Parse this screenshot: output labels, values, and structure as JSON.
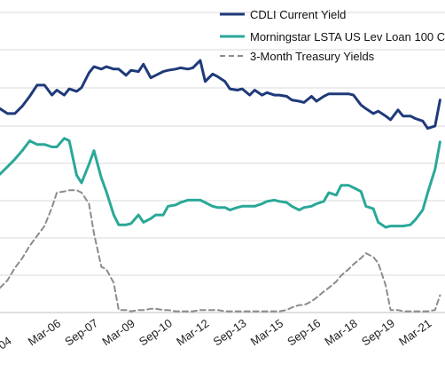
{
  "chart_data": {
    "type": "line",
    "title": "",
    "xlabel": "",
    "ylabel": "",
    "x_tick_labels": [
      "Mar-06",
      "Sep-07",
      "Mar-09",
      "Sep-10",
      "Mar-12",
      "Sep-13",
      "Mar-15",
      "Sep-16",
      "Mar-18",
      "Sep-19",
      "Mar-21"
    ],
    "partial_edge_tick_label": "04",
    "grid": "horizontal",
    "legend_position": "top-right",
    "series": [
      {
        "name": "CDLI Current Yield",
        "color": "#1f3a7a",
        "dash": "solid",
        "x": [
          2004.9,
          2005.2,
          2005.5,
          2005.8,
          2006.1,
          2006.4,
          2006.7,
          2007.0,
          2007.3,
          2007.6,
          2007.9,
          2008.2,
          2008.5,
          2008.8,
          2009.1,
          2009.4,
          2009.7,
          2010.0,
          2010.3,
          2010.6,
          2010.9,
          2011.2,
          2011.5,
          2011.8,
          2012.1,
          2012.4,
          2012.7,
          2013.0,
          2013.3,
          2013.6,
          2013.9,
          2014.2,
          2014.5,
          2014.8,
          2015.1,
          2015.4,
          2015.7,
          2016.0,
          2016.3,
          2016.6,
          2016.9,
          2017.2,
          2017.5,
          2017.8,
          2018.1,
          2018.4,
          2018.7,
          2019.0,
          2019.3,
          2019.6,
          2019.9,
          2020.2,
          2020.5,
          2020.8,
          2021.1,
          2021.4,
          2021.7,
          2022.0
        ],
        "y": [
          8.9,
          9.2,
          10.2,
          9.6,
          9.9,
          10.1,
          10.9,
          11.3,
          11.1,
          10.9,
          11.2,
          10.9,
          10.5,
          11.0,
          11.2,
          10.6,
          10.9,
          11.0,
          11.1,
          11.3,
          10.6,
          10.9,
          10.6,
          10.3,
          10.2,
          10.3,
          10.1,
          10.1,
          9.9,
          9.8,
          9.8,
          9.5,
          9.7,
          9.3,
          9.6,
          9.8,
          9.9,
          10.0,
          10.0,
          10.0,
          9.8,
          9.4,
          9.0,
          8.8,
          9.0,
          8.6,
          8.7,
          8.3,
          8.4,
          8.5,
          8.2,
          7.7,
          7.6,
          9.1,
          8.4,
          7.9,
          8.9,
          9.4
        ],
        "x_dense": [
          2004.0,
          2004.3,
          2004.6,
          2004.9,
          2005.2,
          2005.5,
          2005.8,
          2006.1,
          2006.3,
          2006.6,
          2006.8,
          2007.1,
          2007.3,
          2007.6,
          2007.8,
          2008.1,
          2008.3,
          2008.6,
          2008.8,
          2009.1,
          2009.3,
          2009.6,
          2009.8,
          2010.1,
          2010.3,
          2010.6,
          2010.8,
          2011.1,
          2011.3,
          2011.6,
          2011.8,
          2012.1,
          2012.3,
          2012.6,
          2012.8,
          2013.1,
          2013.3,
          2013.6,
          2013.8,
          2014.1,
          2014.3,
          2014.6,
          2014.8,
          2015.1,
          2015.3,
          2015.6,
          2015.8,
          2016.1,
          2016.3,
          2016.6,
          2016.8,
          2017.1,
          2017.3,
          2017.6,
          2017.8,
          2018.1,
          2018.3,
          2018.6,
          2018.8,
          2019.1,
          2019.3,
          2019.6,
          2019.8,
          2020.1,
          2020.3,
          2020.6,
          2020.8,
          2021.1,
          2021.3,
          2021.6,
          2021.8
        ],
        "y_dense": [
          8.25,
          8.05,
          8.05,
          8.35,
          8.75,
          9.2,
          9.2,
          8.8,
          9.0,
          8.8,
          9.05,
          8.95,
          9.1,
          9.7,
          9.95,
          9.85,
          9.95,
          9.85,
          9.85,
          9.6,
          9.8,
          9.75,
          10.05,
          9.5,
          9.6,
          9.75,
          9.8,
          9.85,
          9.9,
          9.85,
          9.9,
          10.2,
          9.35,
          9.65,
          9.55,
          9.35,
          9.05,
          9.0,
          9.05,
          8.8,
          9.0,
          8.8,
          8.9,
          8.8,
          8.8,
          8.75,
          8.6,
          8.55,
          8.5,
          8.75,
          8.55,
          8.75,
          8.85,
          8.85,
          8.85,
          8.85,
          8.8,
          8.4,
          8.25,
          8.05,
          8.15,
          7.95,
          7.8,
          8.2,
          7.95,
          7.95,
          7.85,
          7.75,
          7.45,
          7.55,
          8.6
        ]
      },
      {
        "name": "Morningstar LSTA US Lev Loan 100 C",
        "color": "#2aa898",
        "dash": "solid",
        "x": [
          2004.0,
          2004.3,
          2004.6,
          2004.9,
          2005.2,
          2005.5,
          2005.8,
          2006.1,
          2006.3,
          2006.6,
          2006.8,
          2007.1,
          2007.3,
          2007.6,
          2007.8,
          2008.1,
          2008.3,
          2008.6,
          2008.8,
          2009.1,
          2009.3,
          2009.6,
          2009.8,
          2010.1,
          2010.3,
          2010.6,
          2010.8,
          2011.1,
          2011.3,
          2011.6,
          2011.8,
          2012.1,
          2012.3,
          2012.6,
          2012.8,
          2013.1,
          2013.3,
          2013.6,
          2013.8,
          2014.1,
          2014.3,
          2014.6,
          2014.8,
          2015.1,
          2015.3,
          2015.6,
          2015.8,
          2016.1,
          2016.3,
          2016.6,
          2016.8,
          2017.1,
          2017.3,
          2017.6,
          2017.8,
          2018.1,
          2018.3,
          2018.6,
          2018.8,
          2019.1,
          2019.3,
          2019.6,
          2019.8,
          2020.1,
          2020.3,
          2020.6,
          2020.8,
          2021.1,
          2021.3,
          2021.6,
          2021.8
        ],
        "y": [
          5.6,
          5.9,
          6.2,
          6.55,
          6.95,
          6.8,
          6.8,
          6.7,
          6.7,
          7.05,
          6.95,
          5.55,
          5.25,
          6.0,
          6.55,
          5.45,
          4.9,
          3.95,
          3.55,
          3.55,
          3.6,
          3.95,
          3.65,
          3.8,
          3.95,
          3.95,
          4.3,
          4.35,
          4.45,
          4.55,
          4.55,
          4.55,
          4.45,
          4.3,
          4.25,
          4.25,
          4.15,
          4.25,
          4.3,
          4.3,
          4.3,
          4.4,
          4.5,
          4.55,
          4.5,
          4.45,
          4.3,
          4.15,
          4.25,
          4.3,
          4.4,
          4.5,
          4.85,
          4.75,
          5.15,
          5.15,
          5.05,
          4.9,
          4.3,
          4.2,
          3.65,
          3.45,
          3.5,
          3.5,
          3.5,
          3.55,
          3.75,
          4.15,
          4.85,
          5.8,
          6.9
        ]
      },
      {
        "name": "3-Month Treasury Yields",
        "color": "#8c8c8c",
        "dash": "dashed",
        "x": [
          2004.0,
          2004.3,
          2004.6,
          2004.9,
          2005.2,
          2005.5,
          2005.8,
          2006.1,
          2006.3,
          2006.6,
          2006.8,
          2007.1,
          2007.3,
          2007.6,
          2007.8,
          2008.1,
          2008.3,
          2008.6,
          2008.8,
          2009.1,
          2009.3,
          2009.6,
          2009.8,
          2010.1,
          2010.3,
          2010.6,
          2010.8,
          2011.1,
          2011.3,
          2011.6,
          2011.8,
          2012.1,
          2012.3,
          2012.6,
          2012.8,
          2013.1,
          2013.3,
          2013.6,
          2013.8,
          2014.1,
          2014.3,
          2014.6,
          2014.8,
          2015.1,
          2015.3,
          2015.6,
          2015.8,
          2016.1,
          2016.3,
          2016.6,
          2016.8,
          2017.1,
          2017.3,
          2017.6,
          2017.8,
          2018.1,
          2018.3,
          2018.6,
          2018.8,
          2019.1,
          2019.3,
          2019.6,
          2019.8,
          2020.1,
          2020.3,
          2020.6,
          2020.8,
          2021.1,
          2021.3,
          2021.6,
          2021.8
        ],
        "y": [
          1.0,
          1.3,
          1.8,
          2.2,
          2.7,
          3.1,
          3.5,
          4.25,
          4.85,
          4.9,
          4.95,
          4.95,
          4.85,
          4.4,
          3.2,
          1.85,
          1.75,
          1.2,
          0.1,
          0.1,
          0.05,
          0.1,
          0.1,
          0.15,
          0.15,
          0.1,
          0.1,
          0.05,
          0.05,
          0.05,
          0.05,
          0.1,
          0.1,
          0.1,
          0.1,
          0.05,
          0.05,
          0.05,
          0.05,
          0.05,
          0.05,
          0.05,
          0.05,
          0.05,
          0.05,
          0.1,
          0.2,
          0.3,
          0.3,
          0.45,
          0.6,
          0.85,
          1.0,
          1.25,
          1.5,
          1.75,
          1.95,
          2.2,
          2.4,
          2.25,
          2.0,
          1.1,
          0.1,
          0.1,
          0.05,
          0.05,
          0.05,
          0.05,
          0.05,
          0.1,
          0.7
        ]
      }
    ]
  }
}
